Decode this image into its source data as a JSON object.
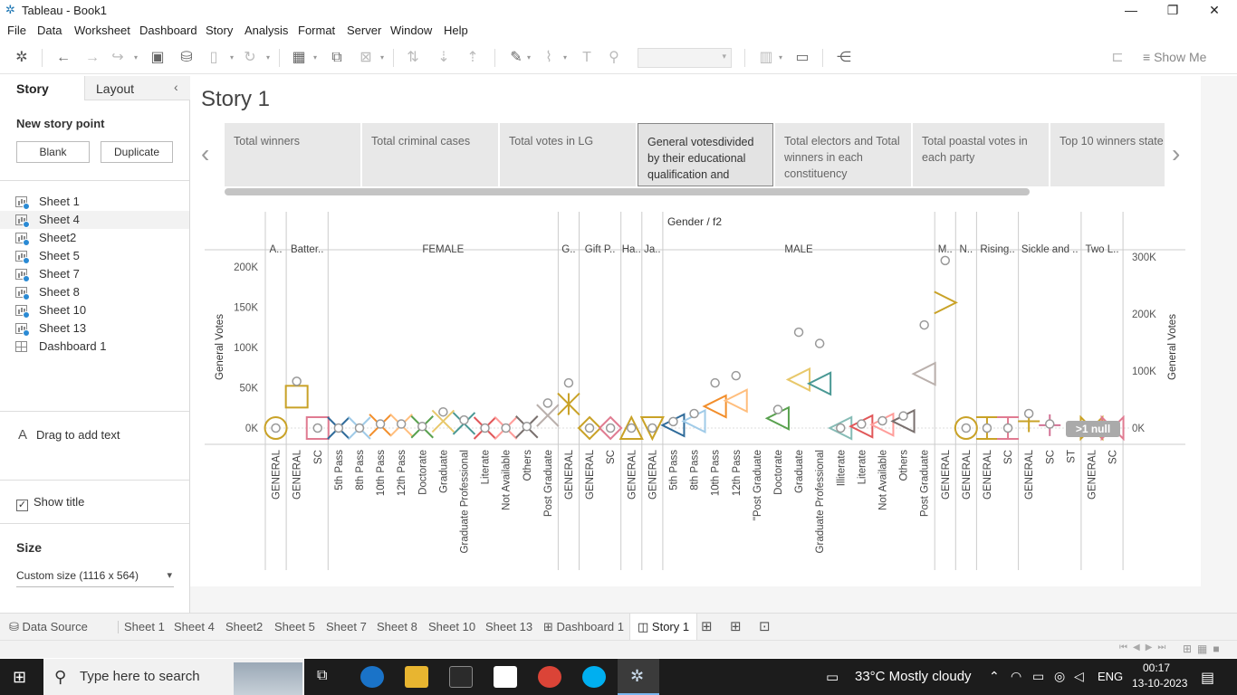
{
  "window": {
    "title": "Tableau - Book1",
    "app_icon": "tableau-logo-icon",
    "controls": [
      "minimize-icon",
      "restore-icon",
      "close-icon"
    ]
  },
  "menu": [
    "File",
    "Data",
    "Worksheet",
    "Dashboard",
    "Story",
    "Analysis",
    "Format",
    "Server",
    "Window",
    "Help"
  ],
  "toolbar": {
    "show_me": "Show Me"
  },
  "left_pane": {
    "tabs": {
      "story": "Story",
      "layout": "Layout"
    },
    "new_story_point": "New story point",
    "blank": "Blank",
    "duplicate": "Duplicate",
    "sheets": [
      "Sheet 1",
      "Sheet 4",
      "Sheet2",
      "Sheet 5",
      "Sheet 7",
      "Sheet 8",
      "Sheet 10",
      "Sheet 13"
    ],
    "dashboard": "Dashboard 1",
    "drag_text_icon": "A",
    "drag_text": "Drag to add text",
    "show_title": "Show title",
    "size_header": "Size",
    "size_value": "Custom size (1116 x 564)"
  },
  "story": {
    "title": "Story 1",
    "points": [
      "Total winners",
      "Total criminal cases",
      "Total votes in LG",
      "General votesdivided by their educational qualification and",
      "Total electors and Total winners in each constituency",
      "Total poastal votes in each party",
      "Top 10 winners state"
    ],
    "active_point": 3
  },
  "chart_data": {
    "type": "scatter",
    "title": "Gender / f2",
    "ylabel_left": "General Votes",
    "ylabel_right": "General Votes",
    "ylim_left": [
      -20000,
      220000
    ],
    "ylim_right": [
      -20000,
      330000
    ],
    "yticks_left": [
      "200K",
      "150K",
      "100K",
      "50K",
      "0K"
    ],
    "yticks_right": [
      "300K",
      "200K",
      "100K",
      "0K"
    ],
    "null_badge": ">1 null",
    "groups": [
      {
        "name": "A..",
        "cats": [
          "GENERAL"
        ]
      },
      {
        "name": "Batter..",
        "cats": [
          "GENERAL",
          "SC"
        ]
      },
      {
        "name": "FEMALE",
        "cats": [
          "5th Pass",
          "8th Pass",
          "10th Pass",
          "12th Pass",
          "Doctorate",
          "Graduate",
          "Graduate Professional",
          "Literate",
          "Not Available",
          "Others",
          "Post Graduate"
        ]
      },
      {
        "name": "G..",
        "cats": [
          "GENERAL"
        ]
      },
      {
        "name": "Gift P..",
        "cats": [
          "GENERAL",
          "SC"
        ]
      },
      {
        "name": "Ha..",
        "cats": [
          "GENERAL"
        ]
      },
      {
        "name": "Ja..",
        "cats": [
          "GENERAL"
        ]
      },
      {
        "name": "MALE",
        "cats": [
          "5th Pass",
          "8th Pass",
          "10th Pass",
          "12th Pass",
          "\"Post Graduate",
          "Doctorate",
          "Graduate",
          "Graduate Professional",
          "Illiterate",
          "Literate",
          "Not Available",
          "Others",
          "Post Graduate"
        ]
      },
      {
        "name": "M..",
        "cats": [
          "GENERAL"
        ]
      },
      {
        "name": "N..",
        "cats": [
          "GENERAL"
        ]
      },
      {
        "name": "Rising..",
        "cats": [
          "GENERAL",
          "SC"
        ]
      },
      {
        "name": "Sickle and ..",
        "cats": [
          "GENERAL",
          "SC",
          "ST"
        ]
      },
      {
        "name": "Two L..",
        "cats": [
          "GENERAL",
          "SC"
        ]
      }
    ],
    "circle_values": [
      0,
      58000,
      0,
      0,
      0,
      5000,
      5000,
      2000,
      20000,
      10000,
      0,
      0,
      2000,
      31000,
      56000,
      0,
      0,
      0,
      0,
      8000,
      18000,
      56000,
      65000,
      null,
      23000,
      119000,
      105000,
      0,
      5000,
      9000,
      15000,
      128000,
      208000,
      0,
      0,
      0,
      18000,
      5000,
      null,
      0,
      0
    ],
    "shape_values": [
      0,
      55000,
      0,
      0,
      0,
      5000,
      5000,
      2000,
      12000,
      8000,
      0,
      0,
      2000,
      22000,
      42000,
      0,
      0,
      0,
      0,
      5000,
      12000,
      38000,
      48000,
      null,
      17000,
      85000,
      78000,
      0,
      3000,
      6000,
      12000,
      95000,
      220000,
      0,
      0,
      0,
      12000,
      5000,
      null,
      0,
      0
    ],
    "colors": [
      "#c9a227",
      "#c9a227",
      "#e07b91",
      "#2f6b9a",
      "#a0cbe8",
      "#f28e2b",
      "#ffbe7d",
      "#59a14f",
      "#e8c86b",
      "#499894",
      "#e15759",
      "#ff9d9a",
      "#79706e",
      "#bab0ac",
      "#c9a227",
      "#c9a227",
      "#e07b91",
      "#c9a227",
      "#c9a227",
      "#2f6b9a",
      "#a0cbe8",
      "#f28e2b",
      "#ffbe7d",
      "#8cd17d",
      "#59a14f",
      "#e8c86b",
      "#499894",
      "#86bcb6",
      "#e15759",
      "#ff9d9a",
      "#79706e",
      "#bab0ac",
      "#c9a227",
      "#c9a227",
      "#c9a227",
      "#e07b91",
      "#c9a227",
      "#d37295",
      "#e07b91",
      "#c9a227",
      "#e07b91"
    ],
    "shapes": [
      "circle",
      "square",
      "square",
      "x",
      "x",
      "x",
      "x",
      "x",
      "x",
      "x",
      "x",
      "x",
      "x",
      "x",
      "star",
      "diamond",
      "diamond",
      "tri-up",
      "tri-down",
      "tri-left",
      "tri-left",
      "tri-left",
      "tri-left",
      "tri-left",
      "tri-left",
      "tri-left",
      "tri-left",
      "tri-left",
      "tri-left",
      "tri-left",
      "tri-left",
      "tri-left",
      "chevron",
      "circle",
      "bar",
      "bar",
      "plus",
      "plus",
      "plus",
      "bowtie",
      "bowtie"
    ]
  },
  "bottom_tabs": {
    "data_source": "Data Source",
    "sheets": [
      "Sheet 1",
      "Sheet 4",
      "Sheet2",
      "Sheet 5",
      "Sheet 7",
      "Sheet 8",
      "Sheet 10",
      "Sheet 13"
    ],
    "dashboard": "Dashboard 1",
    "story": "Story 1"
  },
  "taskbar": {
    "search_placeholder": "Type here to search",
    "weather": "33°C  Mostly cloudy",
    "language": "ENG",
    "time": "00:17",
    "date": "13-10-2023"
  }
}
